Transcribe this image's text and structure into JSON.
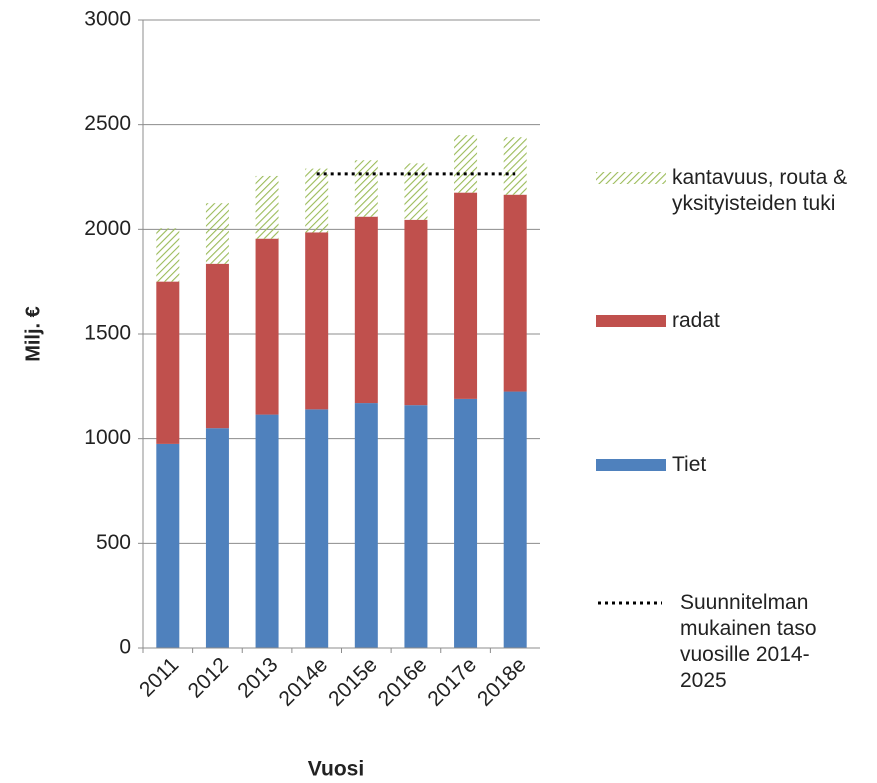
{
  "chart_data": {
    "type": "bar",
    "stacked": true,
    "x_label": "Vuosi",
    "y_label": "Milj. €",
    "categories": [
      "2011",
      "2012",
      "2013",
      "2014e",
      "2015e",
      "2016e",
      "2017e",
      "2018e"
    ],
    "series": [
      {
        "name": "Tiet",
        "color": "#4f81bd",
        "values": [
          975,
          1050,
          1115,
          1140,
          1170,
          1160,
          1190,
          1225
        ]
      },
      {
        "name": "radat",
        "color": "#c0504d",
        "values": [
          775,
          785,
          840,
          845,
          890,
          885,
          985,
          940
        ]
      },
      {
        "name": "kantavuus, routa & yksityisteiden tuki",
        "color": "#9bbb59",
        "pattern": "hatch",
        "values": [
          255,
          290,
          300,
          305,
          270,
          270,
          275,
          275
        ]
      },
      {
        "name": "Suunnitelman mukainen taso vuosille 2014-2025",
        "type": "line",
        "style": "dotted",
        "color": "#000000",
        "values": [
          null,
          null,
          null,
          2265,
          2265,
          2265,
          2265,
          2265
        ]
      }
    ],
    "ylim": [
      0,
      3000
    ],
    "yticks": [
      0,
      500,
      1000,
      1500,
      2000,
      2500,
      3000
    ],
    "grid": true
  }
}
